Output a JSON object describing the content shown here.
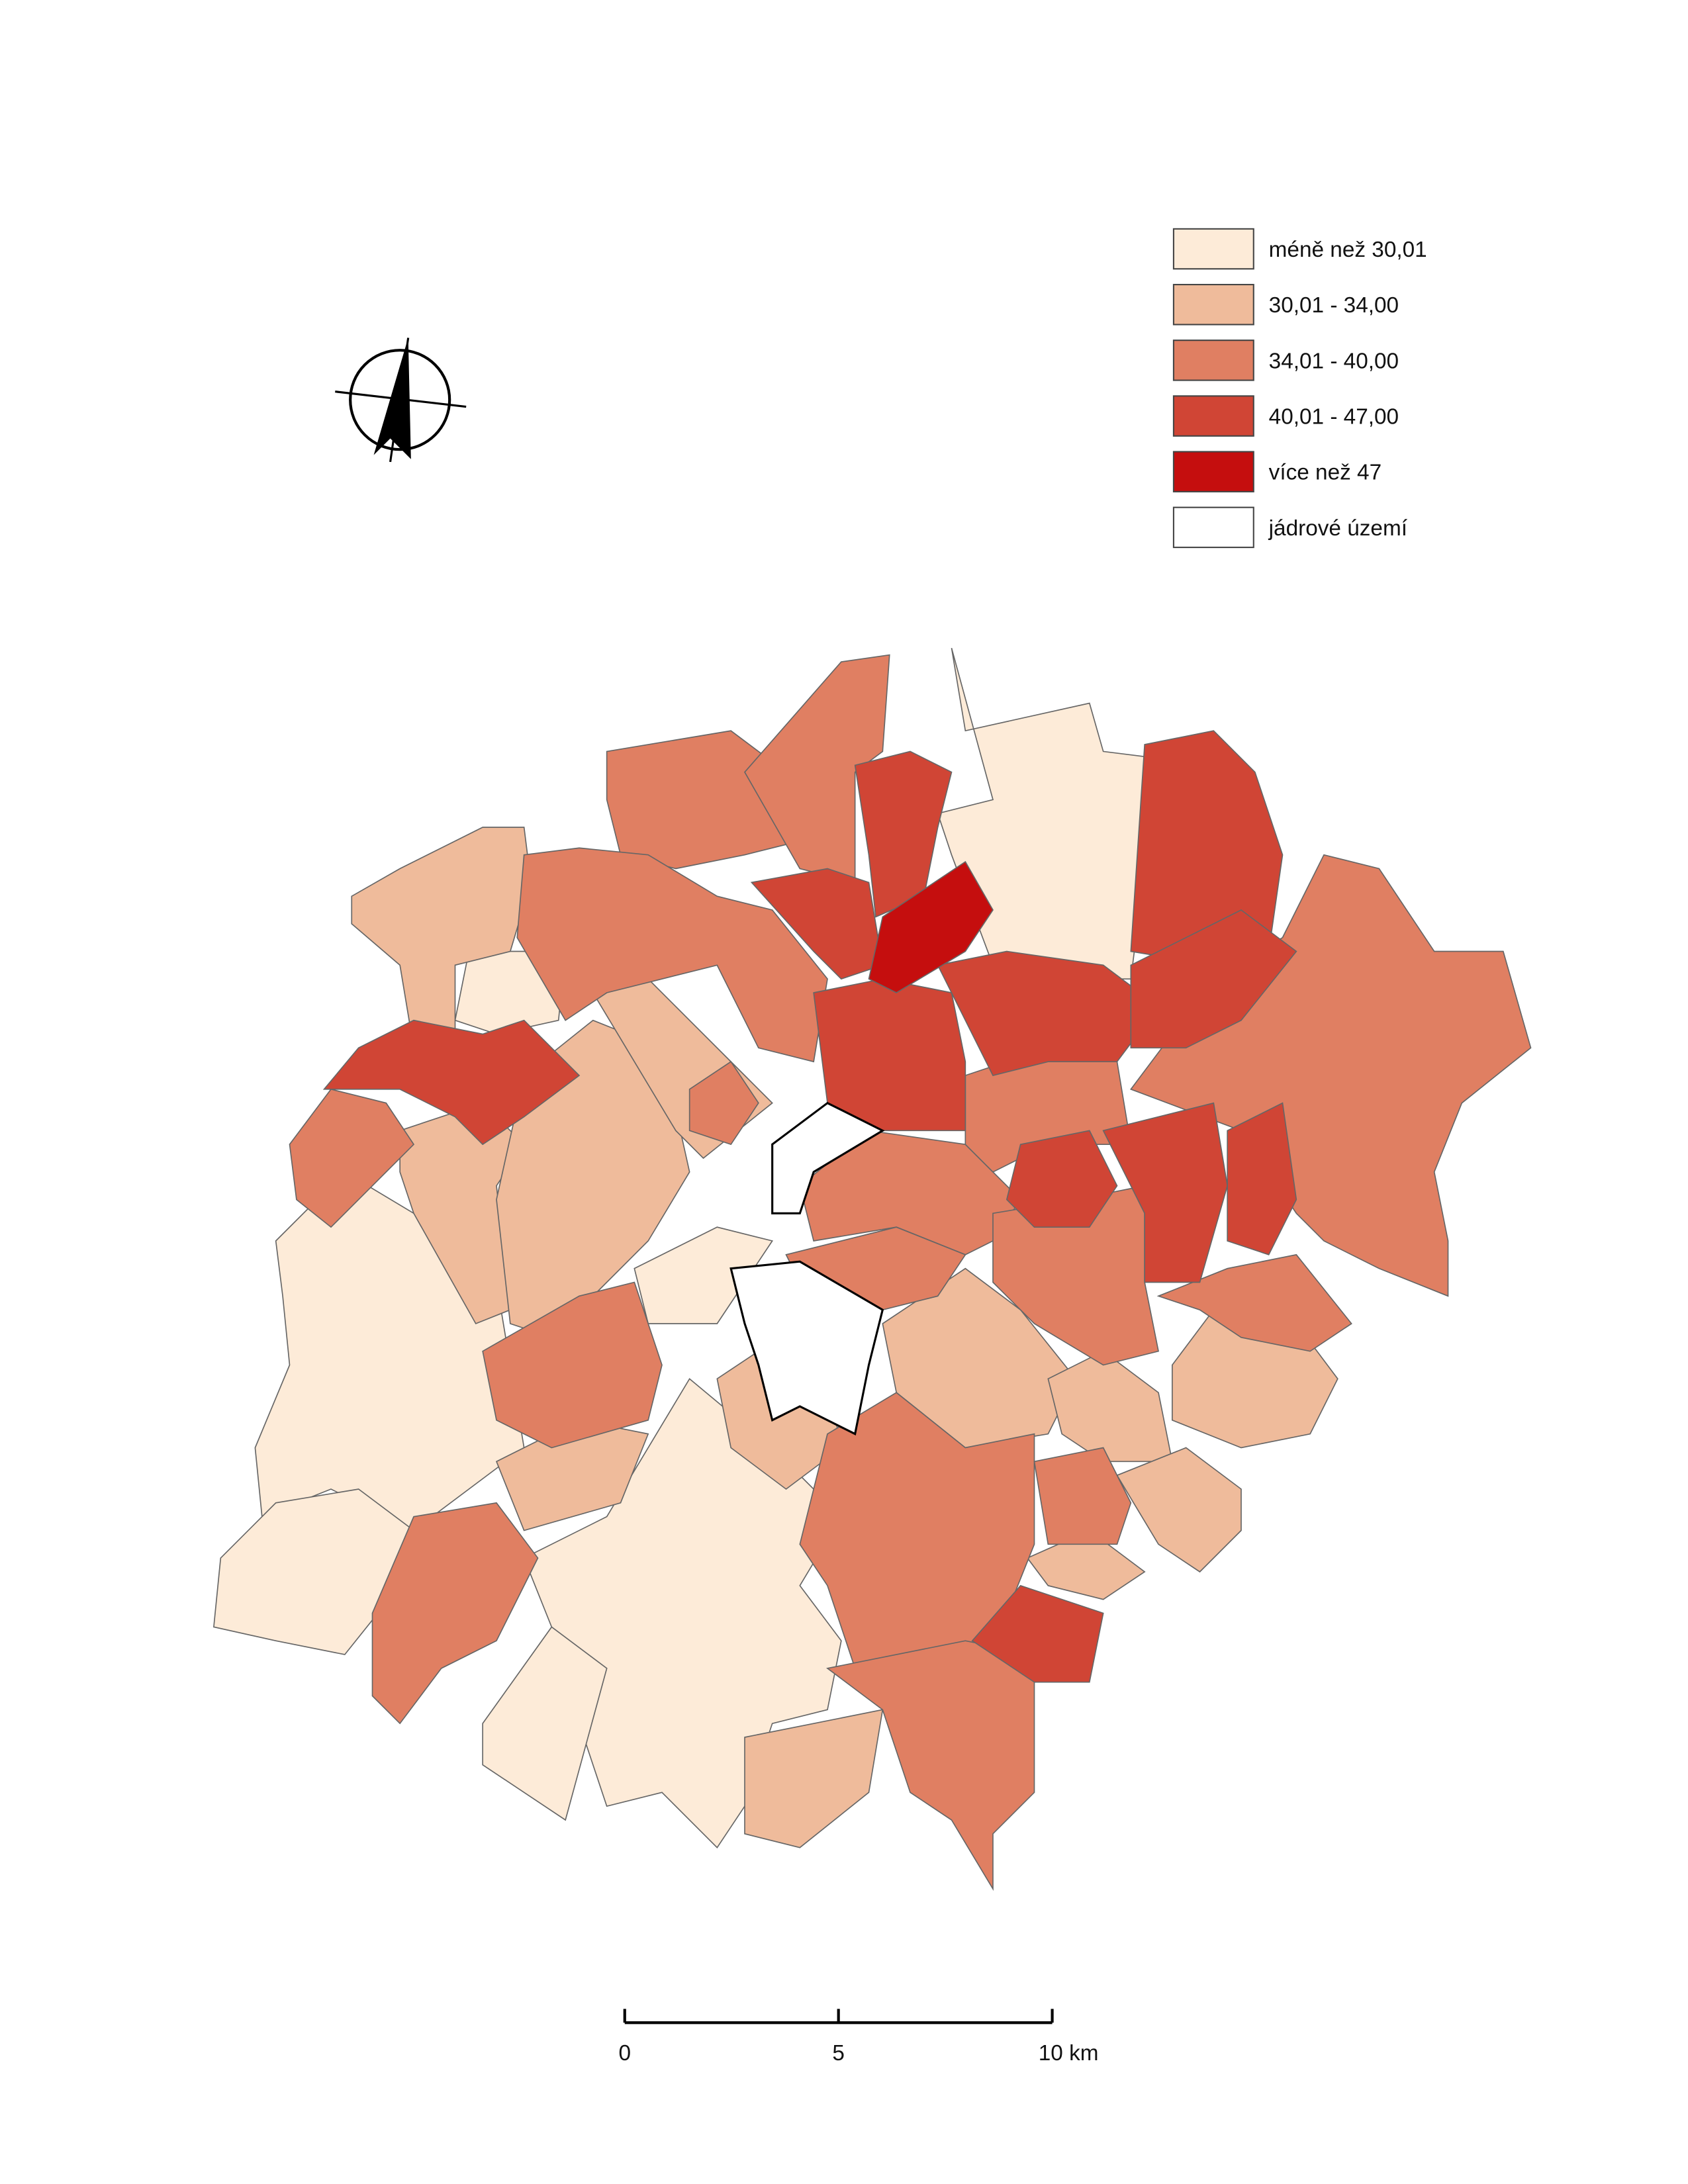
{
  "legend": {
    "items": [
      {
        "label": "méně než 30,01",
        "color": "#fdebd8"
      },
      {
        "label": "30,01 - 34,00",
        "color": "#efbb9b"
      },
      {
        "label": "34,01 - 40,00",
        "color": "#e07f62"
      },
      {
        "label": "40,01 - 47,00",
        "color": "#d04535"
      },
      {
        "label": "více než 47",
        "color": "#c50e0e"
      },
      {
        "label": "jádrové území",
        "color": "#ffffff"
      }
    ]
  },
  "scale_bar": {
    "labels": [
      "0",
      "5",
      "10 km"
    ]
  }
}
